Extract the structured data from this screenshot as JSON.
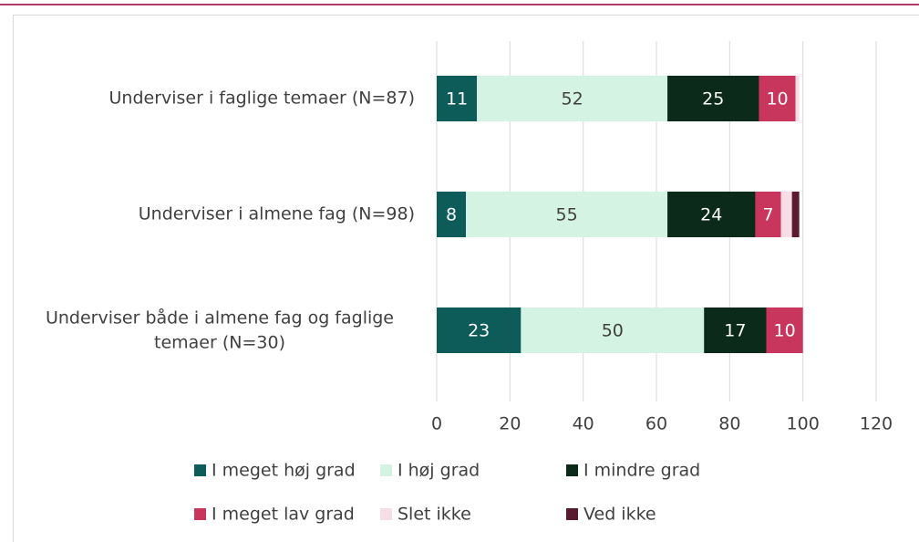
{
  "chart_data": {
    "type": "stacked-bar-horizontal",
    "categories": [
      "Underviser i faglige temaer (N=87)",
      "Underviser i almene fag (N=98)",
      "Underviser både i almene fag og faglige temaer (N=30)"
    ],
    "series": [
      {
        "name": "I meget høj grad",
        "color": "#0e5c5a",
        "values": [
          11,
          8,
          23
        ]
      },
      {
        "name": "I høj grad",
        "color": "#d5f3e3",
        "values": [
          52,
          55,
          50
        ]
      },
      {
        "name": "I mindre grad",
        "color": "#0b2a1a",
        "values": [
          25,
          24,
          17
        ]
      },
      {
        "name": "I meget lav grad",
        "color": "#c8365e",
        "values": [
          10,
          7,
          10
        ]
      },
      {
        "name": "Slet ikke",
        "color": "#f6dde6",
        "values": [
          1,
          3,
          0
        ]
      },
      {
        "name": "Ved ikke",
        "color": "#5a1a30",
        "values": [
          0,
          2,
          0
        ]
      }
    ],
    "xlim": [
      0,
      120
    ],
    "xticks": [
      0,
      20,
      40,
      60,
      80,
      100,
      120
    ],
    "grid": true,
    "legend": "bottom"
  }
}
